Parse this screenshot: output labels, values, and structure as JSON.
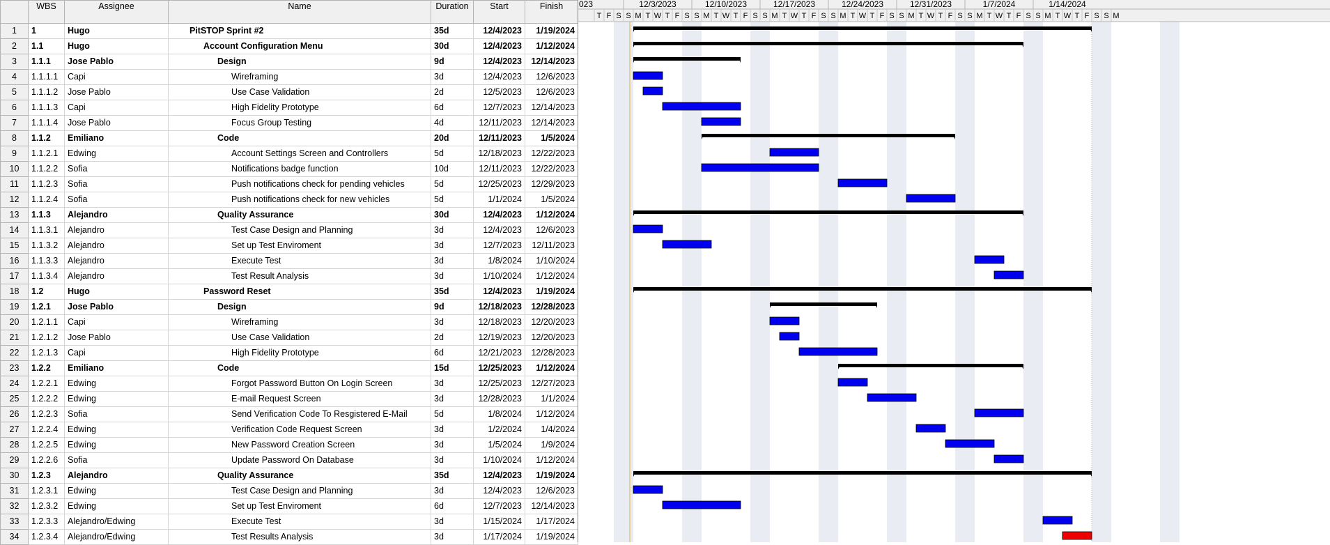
{
  "columns": {
    "wbs": "WBS",
    "assignee": "Assignee",
    "name": "Name",
    "duration": "Duration",
    "start": "Start",
    "finish": "Finish"
  },
  "timeline": {
    "weeks": [
      "023",
      "12/3/2023",
      "12/10/2023",
      "12/17/2023",
      "12/24/2023",
      "12/31/2023",
      "1/7/2024",
      "1/14/2024"
    ],
    "days_prefix": [
      "T",
      "F",
      "S"
    ],
    "day_letters": [
      "S",
      "M",
      "T",
      "W",
      "T",
      "F",
      "S"
    ],
    "days_suffix": [
      "S",
      "M"
    ]
  },
  "colors": {
    "summary": "#000000",
    "task": "#0000ee",
    "critical": "#ee0000",
    "weekend": "#e9edf3"
  },
  "tasks": [
    {
      "row": "1",
      "wbs": "1",
      "assignee": "Hugo",
      "name": "PitSTOP Sprint #2",
      "duration": "35d",
      "start": "12/4/2023",
      "finish": "1/19/2024",
      "level": 0,
      "summary": true,
      "s": 0,
      "e": 47
    },
    {
      "row": "2",
      "wbs": "1.1",
      "assignee": "Hugo",
      "name": "Account Configuration Menu",
      "duration": "30d",
      "start": "12/4/2023",
      "finish": "1/12/2024",
      "level": 1,
      "summary": true,
      "s": 0,
      "e": 40
    },
    {
      "row": "3",
      "wbs": "1.1.1",
      "assignee": "Jose Pablo",
      "name": "Design",
      "duration": "9d",
      "start": "12/4/2023",
      "finish": "12/14/2023",
      "level": 2,
      "summary": true,
      "s": 0,
      "e": 11
    },
    {
      "row": "4",
      "wbs": "1.1.1.1",
      "assignee": "Capi",
      "name": "Wireframing",
      "duration": "3d",
      "start": "12/4/2023",
      "finish": "12/6/2023",
      "level": 3,
      "summary": false,
      "s": 0,
      "e": 3
    },
    {
      "row": "5",
      "wbs": "1.1.1.2",
      "assignee": "Jose Pablo",
      "name": "Use Case Validation",
      "duration": "2d",
      "start": "12/5/2023",
      "finish": "12/6/2023",
      "level": 3,
      "summary": false,
      "s": 1,
      "e": 3
    },
    {
      "row": "6",
      "wbs": "1.1.1.3",
      "assignee": "Capi",
      "name": "High Fidelity Prototype",
      "duration": "6d",
      "start": "12/7/2023",
      "finish": "12/14/2023",
      "level": 3,
      "summary": false,
      "s": 3,
      "e": 11
    },
    {
      "row": "7",
      "wbs": "1.1.1.4",
      "assignee": "Jose Pablo",
      "name": "Focus Group Testing",
      "duration": "4d",
      "start": "12/11/2023",
      "finish": "12/14/2023",
      "level": 3,
      "summary": false,
      "s": 7,
      "e": 11
    },
    {
      "row": "8",
      "wbs": "1.1.2",
      "assignee": "Emiliano",
      "name": "Code",
      "duration": "20d",
      "start": "12/11/2023",
      "finish": "1/5/2024",
      "level": 2,
      "summary": true,
      "s": 7,
      "e": 33
    },
    {
      "row": "9",
      "wbs": "1.1.2.1",
      "assignee": "Edwing",
      "name": "Account Settings Screen and Controllers",
      "duration": "5d",
      "start": "12/18/2023",
      "finish": "12/22/2023",
      "level": 3,
      "summary": false,
      "s": 14,
      "e": 19
    },
    {
      "row": "10",
      "wbs": "1.1.2.2",
      "assignee": "Sofia",
      "name": "Notifications badge function",
      "duration": "10d",
      "start": "12/11/2023",
      "finish": "12/22/2023",
      "level": 3,
      "summary": false,
      "s": 7,
      "e": 19
    },
    {
      "row": "11",
      "wbs": "1.1.2.3",
      "assignee": "Sofia",
      "name": "Push notifications check for pending vehicles",
      "duration": "5d",
      "start": "12/25/2023",
      "finish": "12/29/2023",
      "level": 3,
      "summary": false,
      "s": 21,
      "e": 26
    },
    {
      "row": "12",
      "wbs": "1.1.2.4",
      "assignee": "Sofia",
      "name": "Push notifications check for new vehicles",
      "duration": "5d",
      "start": "1/1/2024",
      "finish": "1/5/2024",
      "level": 3,
      "summary": false,
      "s": 28,
      "e": 33
    },
    {
      "row": "13",
      "wbs": "1.1.3",
      "assignee": "Alejandro",
      "name": "Quality Assurance",
      "duration": "30d",
      "start": "12/4/2023",
      "finish": "1/12/2024",
      "level": 2,
      "summary": true,
      "s": 0,
      "e": 40
    },
    {
      "row": "14",
      "wbs": "1.1.3.1",
      "assignee": "Alejandro",
      "name": "Test Case Design and Planning",
      "duration": "3d",
      "start": "12/4/2023",
      "finish": "12/6/2023",
      "level": 3,
      "summary": false,
      "s": 0,
      "e": 3
    },
    {
      "row": "15",
      "wbs": "1.1.3.2",
      "assignee": "Alejandro",
      "name": "Set up Test Enviroment",
      "duration": "3d",
      "start": "12/7/2023",
      "finish": "12/11/2023",
      "level": 3,
      "summary": false,
      "s": 3,
      "e": 8
    },
    {
      "row": "16",
      "wbs": "1.1.3.3",
      "assignee": "Alejandro",
      "name": "Execute Test",
      "duration": "3d",
      "start": "1/8/2024",
      "finish": "1/10/2024",
      "level": 3,
      "summary": false,
      "s": 35,
      "e": 38
    },
    {
      "row": "17",
      "wbs": "1.1.3.4",
      "assignee": "Alejandro",
      "name": "Test Result Analysis",
      "duration": "3d",
      "start": "1/10/2024",
      "finish": "1/12/2024",
      "level": 3,
      "summary": false,
      "s": 37,
      "e": 40
    },
    {
      "row": "18",
      "wbs": "1.2",
      "assignee": "Hugo",
      "name": "Password Reset",
      "duration": "35d",
      "start": "12/4/2023",
      "finish": "1/19/2024",
      "level": 1,
      "summary": true,
      "s": 0,
      "e": 47
    },
    {
      "row": "19",
      "wbs": "1.2.1",
      "assignee": "Jose Pablo",
      "name": "Design",
      "duration": "9d",
      "start": "12/18/2023",
      "finish": "12/28/2023",
      "level": 2,
      "summary": true,
      "s": 14,
      "e": 25
    },
    {
      "row": "20",
      "wbs": "1.2.1.1",
      "assignee": "Capi",
      "name": "Wireframing",
      "duration": "3d",
      "start": "12/18/2023",
      "finish": "12/20/2023",
      "level": 3,
      "summary": false,
      "s": 14,
      "e": 17
    },
    {
      "row": "21",
      "wbs": "1.2.1.2",
      "assignee": "Jose Pablo",
      "name": "Use Case Validation",
      "duration": "2d",
      "start": "12/19/2023",
      "finish": "12/20/2023",
      "level": 3,
      "summary": false,
      "s": 15,
      "e": 17
    },
    {
      "row": "22",
      "wbs": "1.2.1.3",
      "assignee": "Capi",
      "name": "High Fidelity Prototype",
      "duration": "6d",
      "start": "12/21/2023",
      "finish": "12/28/2023",
      "level": 3,
      "summary": false,
      "s": 17,
      "e": 25
    },
    {
      "row": "23",
      "wbs": "1.2.2",
      "assignee": "Emiliano",
      "name": "Code",
      "duration": "15d",
      "start": "12/25/2023",
      "finish": "1/12/2024",
      "level": 2,
      "summary": true,
      "s": 21,
      "e": 40
    },
    {
      "row": "24",
      "wbs": "1.2.2.1",
      "assignee": "Edwing",
      "name": "Forgot Password Button On Login Screen",
      "duration": "3d",
      "start": "12/25/2023",
      "finish": "12/27/2023",
      "level": 3,
      "summary": false,
      "s": 21,
      "e": 24
    },
    {
      "row": "25",
      "wbs": "1.2.2.2",
      "assignee": "Edwing",
      "name": "E-mail Request Screen",
      "duration": "3d",
      "start": "12/28/2023",
      "finish": "1/1/2024",
      "level": 3,
      "summary": false,
      "s": 24,
      "e": 29
    },
    {
      "row": "26",
      "wbs": "1.2.2.3",
      "assignee": "Sofia",
      "name": "Send Verification Code To Resgistered E-Mail",
      "duration": "5d",
      "start": "1/8/2024",
      "finish": "1/12/2024",
      "level": 3,
      "summary": false,
      "s": 35,
      "e": 40
    },
    {
      "row": "27",
      "wbs": "1.2.2.4",
      "assignee": "Edwing",
      "name": "Verification Code Request Screen",
      "duration": "3d",
      "start": "1/2/2024",
      "finish": "1/4/2024",
      "level": 3,
      "summary": false,
      "s": 29,
      "e": 32
    },
    {
      "row": "28",
      "wbs": "1.2.2.5",
      "assignee": "Edwing",
      "name": "New Password Creation Screen",
      "duration": "3d",
      "start": "1/5/2024",
      "finish": "1/9/2024",
      "level": 3,
      "summary": false,
      "s": 32,
      "e": 37
    },
    {
      "row": "29",
      "wbs": "1.2.2.6",
      "assignee": "Sofia",
      "name": "Update Password On Database",
      "duration": "3d",
      "start": "1/10/2024",
      "finish": "1/12/2024",
      "level": 3,
      "summary": false,
      "s": 37,
      "e": 40
    },
    {
      "row": "30",
      "wbs": "1.2.3",
      "assignee": "Alejandro",
      "name": "Quality Assurance",
      "duration": "35d",
      "start": "12/4/2023",
      "finish": "1/19/2024",
      "level": 2,
      "summary": true,
      "s": 0,
      "e": 47
    },
    {
      "row": "31",
      "wbs": "1.2.3.1",
      "assignee": "Edwing",
      "name": "Test Case Design and Planning",
      "duration": "3d",
      "start": "12/4/2023",
      "finish": "12/6/2023",
      "level": 3,
      "summary": false,
      "s": 0,
      "e": 3
    },
    {
      "row": "32",
      "wbs": "1.2.3.2",
      "assignee": "Edwing",
      "name": "Set up Test Enviroment",
      "duration": "6d",
      "start": "12/7/2023",
      "finish": "12/14/2023",
      "level": 3,
      "summary": false,
      "s": 3,
      "e": 11
    },
    {
      "row": "33",
      "wbs": "1.2.3.3",
      "assignee": "Alejandro/Edwing",
      "name": "Execute Test",
      "duration": "3d",
      "start": "1/15/2024",
      "finish": "1/17/2024",
      "level": 3,
      "summary": false,
      "s": 42,
      "e": 45
    },
    {
      "row": "34",
      "wbs": "1.2.3.4",
      "assignee": "Alejandro/Edwing",
      "name": "Test Results Analysis",
      "duration": "3d",
      "start": "1/17/2024",
      "finish": "1/19/2024",
      "level": 3,
      "summary": false,
      "critical": true,
      "s": 44,
      "e": 47
    }
  ]
}
